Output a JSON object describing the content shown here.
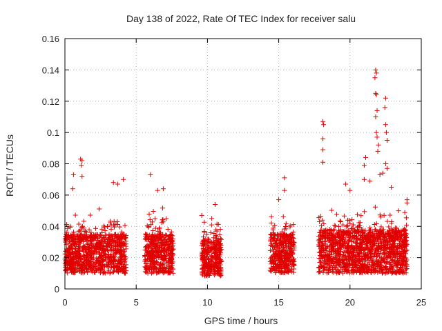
{
  "chart_data": {
    "type": "scatter",
    "title": "Day 138 of 2022, Rate Of TEC Index for receiver salu",
    "xlabel": "GPS time / hours",
    "ylabel": "ROTI / TECUs",
    "xlim": [
      0,
      25
    ],
    "ylim": [
      0,
      0.16
    ],
    "xticks": [
      0,
      5,
      10,
      15,
      20,
      25
    ],
    "yticks": [
      0,
      0.02,
      0.04,
      0.06,
      0.08,
      0.1,
      0.12,
      0.14,
      0.16
    ],
    "xtick_labels": [
      "0",
      "5",
      "10",
      "15",
      "20",
      "25"
    ],
    "ytick_labels": [
      "0",
      "0.02",
      "0.04",
      "0.06",
      "0.08",
      "0.1",
      "0.12",
      "0.14",
      "0.16"
    ],
    "grid": true,
    "marker": "+",
    "color": "#e00000",
    "series": [
      {
        "name": "ROTI",
        "clusters": [
          {
            "x_range": [
              0.0,
              4.3
            ],
            "y_base": [
              0.01,
              0.035
            ],
            "count": 900
          },
          {
            "x_range": [
              5.6,
              7.6
            ],
            "y_base": [
              0.01,
              0.035
            ],
            "count": 450
          },
          {
            "x_range": [
              9.6,
              11.0
            ],
            "y_base": [
              0.008,
              0.032
            ],
            "count": 320
          },
          {
            "x_range": [
              14.4,
              16.1
            ],
            "y_base": [
              0.01,
              0.035
            ],
            "count": 380
          },
          {
            "x_range": [
              17.8,
              24.0
            ],
            "y_base": [
              0.01,
              0.038
            ],
            "count": 1400
          }
        ],
        "notable_points": [
          {
            "x": 1.1,
            "y": 0.083
          },
          {
            "x": 1.2,
            "y": 0.082
          },
          {
            "x": 1.15,
            "y": 0.079
          },
          {
            "x": 1.2,
            "y": 0.072
          },
          {
            "x": 0.6,
            "y": 0.073
          },
          {
            "x": 0.55,
            "y": 0.064
          },
          {
            "x": 3.4,
            "y": 0.068
          },
          {
            "x": 3.7,
            "y": 0.067
          },
          {
            "x": 4.1,
            "y": 0.07
          },
          {
            "x": 6.0,
            "y": 0.073
          },
          {
            "x": 6.5,
            "y": 0.063
          },
          {
            "x": 6.9,
            "y": 0.064
          },
          {
            "x": 9.6,
            "y": 0.047
          },
          {
            "x": 10.3,
            "y": 0.045
          },
          {
            "x": 15.4,
            "y": 0.071
          },
          {
            "x": 15.4,
            "y": 0.063
          },
          {
            "x": 15.0,
            "y": 0.057
          },
          {
            "x": 18.1,
            "y": 0.107
          },
          {
            "x": 18.15,
            "y": 0.105
          },
          {
            "x": 18.1,
            "y": 0.096
          },
          {
            "x": 18.1,
            "y": 0.089
          },
          {
            "x": 18.1,
            "y": 0.081
          },
          {
            "x": 19.7,
            "y": 0.067
          },
          {
            "x": 20.0,
            "y": 0.063
          },
          {
            "x": 21.0,
            "y": 0.079
          },
          {
            "x": 21.1,
            "y": 0.084
          },
          {
            "x": 21.8,
            "y": 0.14
          },
          {
            "x": 21.85,
            "y": 0.138
          },
          {
            "x": 21.75,
            "y": 0.135
          },
          {
            "x": 21.8,
            "y": 0.125
          },
          {
            "x": 21.85,
            "y": 0.124
          },
          {
            "x": 21.9,
            "y": 0.114
          },
          {
            "x": 21.8,
            "y": 0.11
          },
          {
            "x": 21.85,
            "y": 0.1
          },
          {
            "x": 21.9,
            "y": 0.097
          },
          {
            "x": 22.0,
            "y": 0.092
          },
          {
            "x": 21.95,
            "y": 0.088
          },
          {
            "x": 22.5,
            "y": 0.122
          },
          {
            "x": 22.45,
            "y": 0.116
          },
          {
            "x": 22.5,
            "y": 0.105
          },
          {
            "x": 22.55,
            "y": 0.1
          },
          {
            "x": 22.6,
            "y": 0.095
          },
          {
            "x": 22.5,
            "y": 0.08
          },
          {
            "x": 22.6,
            "y": 0.077
          },
          {
            "x": 21.0,
            "y": 0.07
          },
          {
            "x": 21.4,
            "y": 0.069
          },
          {
            "x": 22.1,
            "y": 0.073
          },
          {
            "x": 22.3,
            "y": 0.074
          },
          {
            "x": 22.9,
            "y": 0.065
          },
          {
            "x": 24.0,
            "y": 0.057
          },
          {
            "x": 24.0,
            "y": 0.055
          }
        ]
      }
    ]
  }
}
